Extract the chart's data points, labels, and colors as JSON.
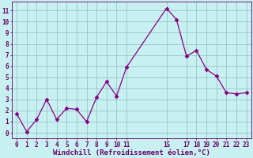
{
  "x": [
    0,
    1,
    2,
    3,
    4,
    5,
    6,
    7,
    8,
    9,
    10,
    11,
    15,
    16,
    17,
    18,
    19,
    20,
    21,
    22,
    23
  ],
  "y": [
    1.7,
    0.1,
    1.2,
    3.0,
    1.2,
    2.2,
    2.1,
    1.0,
    3.2,
    4.6,
    3.3,
    5.9,
    11.2,
    10.2,
    6.9,
    7.4,
    5.7,
    5.1,
    3.6,
    3.5,
    3.6
  ],
  "line_color": "#880088",
  "marker": "D",
  "marker_size": 2.5,
  "bg_color": "#c8f0f0",
  "grid_color": "#99cccc",
  "xlabel": "Windchill (Refroidissement éolien,°C)",
  "xlabel_fontsize": 6.5,
  "xlim": [
    -0.5,
    23.5
  ],
  "ylim": [
    -0.5,
    11.8
  ],
  "xticks": [
    0,
    1,
    2,
    3,
    4,
    5,
    6,
    7,
    8,
    9,
    10,
    11,
    15,
    17,
    18,
    19,
    20,
    21,
    22,
    23
  ],
  "yticks": [
    0,
    1,
    2,
    3,
    4,
    5,
    6,
    7,
    8,
    9,
    10,
    11
  ],
  "tick_fontsize": 5.5,
  "tick_color": "#660066"
}
